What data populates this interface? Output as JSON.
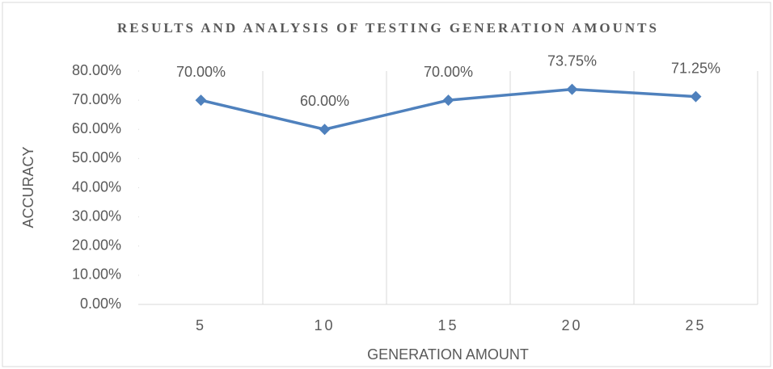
{
  "chart_data": {
    "type": "line",
    "title": "RESULTS AND ANALYSIS OF TESTING GENERATION AMOUNTS",
    "x_label": "GENERATION AMOUNT",
    "y_label": "ACCURACY",
    "categories": [
      "5",
      "10",
      "15",
      "20",
      "25"
    ],
    "values": [
      70,
      60,
      70,
      73.75,
      71.25
    ],
    "value_labels": [
      "70.00%",
      "60.00%",
      "70.00%",
      "73.75%",
      "71.25%"
    ],
    "color": "#4f81bd",
    "ylim": [
      0,
      80
    ],
    "yticks": [
      {
        "value": 0,
        "label": "0.00%"
      },
      {
        "value": 10,
        "label": "10.00%"
      },
      {
        "value": 20,
        "label": "20.00%"
      },
      {
        "value": 30,
        "label": "30.00%"
      },
      {
        "value": 40,
        "label": "40.00%"
      },
      {
        "value": 50,
        "label": "50.00%"
      },
      {
        "value": 60,
        "label": "60.00%"
      },
      {
        "value": 70,
        "label": "70.00%"
      },
      {
        "value": 80,
        "label": "80.00%"
      }
    ],
    "grid": true
  }
}
